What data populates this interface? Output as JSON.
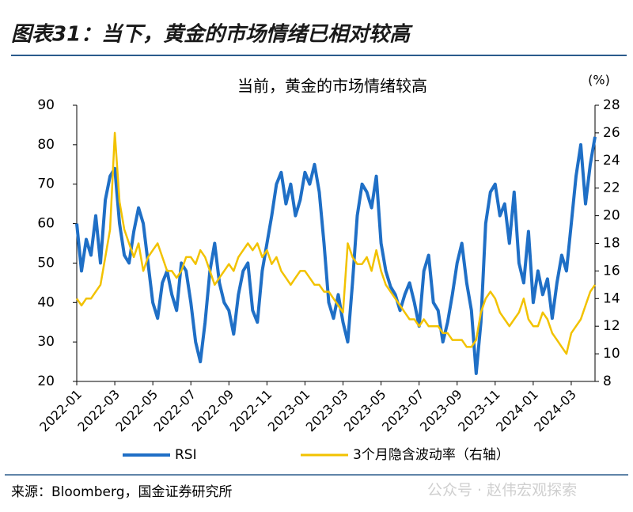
{
  "header": {
    "title": "图表31：当下，黄金的市场情绪已相对较高"
  },
  "chart_data": {
    "type": "line",
    "title": "当前，黄金的市场情绪较高",
    "y2_unit": "(%)",
    "categories": [
      "2022-01",
      null,
      null,
      null,
      null,
      null,
      null,
      null,
      "2022-03",
      null,
      null,
      null,
      null,
      null,
      null,
      null,
      "2022-05",
      null,
      null,
      null,
      null,
      null,
      null,
      null,
      "2022-07",
      null,
      null,
      null,
      null,
      null,
      null,
      null,
      "2022-09",
      null,
      null,
      null,
      null,
      null,
      null,
      null,
      "2022-11",
      null,
      null,
      null,
      null,
      null,
      null,
      null,
      "2023-01",
      null,
      null,
      null,
      null,
      null,
      null,
      null,
      "2023-03",
      null,
      null,
      null,
      null,
      null,
      null,
      null,
      "2023-05",
      null,
      null,
      null,
      null,
      null,
      null,
      null,
      "2023-07",
      null,
      null,
      null,
      null,
      null,
      null,
      null,
      "2023-09",
      null,
      null,
      null,
      null,
      null,
      null,
      null,
      "2023-11",
      null,
      null,
      null,
      null,
      null,
      null,
      null,
      "2024-01",
      null,
      null,
      null,
      null,
      null,
      null,
      null,
      "2024-03",
      null,
      null,
      null,
      null,
      null
    ],
    "series": [
      {
        "name": "RSI",
        "color": "#1f6fc6",
        "axis": "y",
        "values": [
          60,
          48,
          56,
          52,
          62,
          50,
          66,
          72,
          74,
          60,
          52,
          50,
          58,
          64,
          60,
          50,
          40,
          36,
          45,
          48,
          42,
          38,
          50,
          48,
          40,
          30,
          25,
          35,
          48,
          55,
          45,
          40,
          38,
          32,
          42,
          48,
          50,
          38,
          35,
          48,
          55,
          62,
          70,
          73,
          65,
          70,
          62,
          66,
          73,
          70,
          75,
          68,
          55,
          40,
          36,
          42,
          35,
          30,
          45,
          62,
          70,
          68,
          64,
          72,
          55,
          48,
          44,
          42,
          38,
          42,
          45,
          40,
          34,
          48,
          52,
          40,
          38,
          30,
          35,
          42,
          50,
          55,
          45,
          38,
          22,
          35,
          60,
          68,
          70,
          62,
          65,
          55,
          68,
          50,
          45,
          58,
          40,
          48,
          42,
          46,
          36,
          45,
          52,
          48,
          60,
          72,
          80,
          65,
          75,
          82
        ]
      },
      {
        "name": "3个月隐含波动率（右轴）",
        "color": "#f2c200",
        "axis": "y2",
        "values": [
          14,
          13.5,
          14,
          14,
          14.5,
          15,
          17,
          19,
          26,
          21,
          19,
          18,
          17,
          18,
          16,
          17,
          17.5,
          18,
          17,
          16,
          16,
          15.5,
          16,
          17,
          17,
          16.5,
          17.5,
          17,
          16,
          15,
          15.5,
          16,
          16.5,
          16,
          17,
          17.5,
          18,
          17.5,
          18,
          17,
          17.5,
          16.5,
          17,
          16,
          15.5,
          15,
          15.5,
          16,
          16,
          15.5,
          15,
          15,
          14.5,
          14.5,
          14,
          13.5,
          13,
          18,
          17,
          16.5,
          16.5,
          17,
          16,
          17.5,
          16,
          15,
          14.5,
          14,
          13.5,
          13,
          12.5,
          12.5,
          12,
          12.5,
          12,
          12,
          12,
          11.5,
          11.5,
          11,
          11,
          11,
          10.5,
          10.5,
          11,
          13,
          14,
          14.5,
          14,
          13,
          12.5,
          12,
          12.5,
          13,
          14,
          12.5,
          12,
          12,
          13,
          12.5,
          11.5,
          11,
          10.5,
          10,
          11.5,
          12,
          12.5,
          13.5,
          14.5,
          15
        ]
      }
    ],
    "ylim": [
      20,
      90
    ],
    "yticks": [
      20,
      30,
      40,
      50,
      60,
      70,
      80,
      90
    ],
    "y2lim": [
      8,
      28
    ],
    "y2ticks": [
      8,
      10,
      12,
      14,
      16,
      18,
      20,
      22,
      24,
      26,
      28
    ]
  },
  "footer": {
    "source": "来源：Bloomberg，国金证券研究所",
    "watermark": "公众号 · 赵伟宏观探索"
  }
}
